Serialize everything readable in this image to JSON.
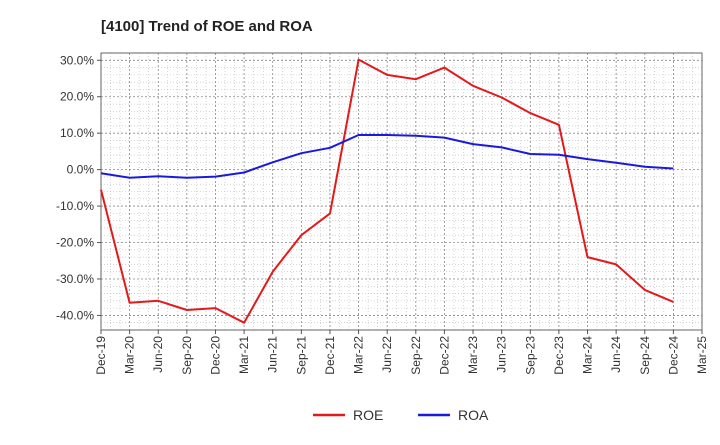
{
  "chart_data": {
    "type": "line",
    "title": "[4100]  Trend of ROE and ROA",
    "xlabel": "",
    "ylabel": "",
    "ylim": [
      -44,
      32
    ],
    "y_ticks": [
      30,
      20,
      10,
      0,
      -10,
      -20,
      -30,
      -40
    ],
    "y_tick_labels": [
      "30.0%",
      "20.0%",
      "10.0%",
      "0.0%",
      "-10.0%",
      "-20.0%",
      "-30.0%",
      "-40.0%"
    ],
    "grid": true,
    "legend_position": "bottom-center",
    "categories": [
      "Dec-19",
      "Mar-20",
      "Jun-20",
      "Sep-20",
      "Dec-20",
      "Mar-21",
      "Jun-21",
      "Sep-21",
      "Dec-21",
      "Mar-22",
      "Jun-22",
      "Sep-22",
      "Dec-22",
      "Mar-23",
      "Jun-23",
      "Sep-23",
      "Dec-23",
      "Mar-24",
      "Jun-24",
      "Sep-24",
      "Dec-24",
      "Mar-25"
    ],
    "series": [
      {
        "name": "ROE",
        "color": "#e31a1c",
        "values": [
          -5.5,
          -36.5,
          -36.0,
          -38.5,
          -38.0,
          -42.0,
          -28.0,
          -18.0,
          -12.0,
          30.2,
          26.0,
          24.8,
          28.0,
          23.0,
          19.8,
          15.5,
          12.3,
          -24.0,
          -26.0,
          -33.0,
          -36.3,
          null
        ]
      },
      {
        "name": "ROA",
        "color": "#1a1adc",
        "values": [
          -1.0,
          -2.2,
          -1.8,
          -2.2,
          -1.9,
          -0.8,
          2.0,
          4.5,
          6.0,
          9.5,
          9.5,
          9.3,
          8.8,
          7.0,
          6.1,
          4.3,
          4.1,
          2.9,
          1.9,
          0.8,
          0.3,
          null
        ]
      }
    ]
  }
}
